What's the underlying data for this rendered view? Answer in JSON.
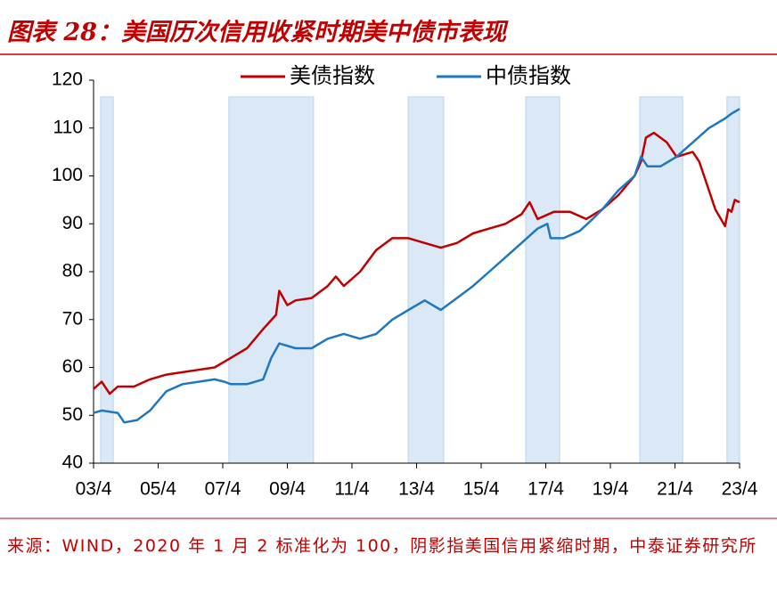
{
  "chart_data": {
    "type": "line",
    "title": "图表 28：美国历次信用收紧时期美中债市表现",
    "note": "来源：WIND，2020 年 1 月 2 标准化为 100，阴影指美国信用紧缩时期，中泰证券研究所",
    "xlim": [
      2003.25,
      2023.25
    ],
    "xticks": [
      {
        "value": 2003.25,
        "label": "03/4"
      },
      {
        "value": 2005.25,
        "label": "05/4"
      },
      {
        "value": 2007.25,
        "label": "07/4"
      },
      {
        "value": 2009.25,
        "label": "09/4"
      },
      {
        "value": 2011.25,
        "label": "11/4"
      },
      {
        "value": 2013.25,
        "label": "13/4"
      },
      {
        "value": 2015.25,
        "label": "15/4"
      },
      {
        "value": 2017.25,
        "label": "17/4"
      },
      {
        "value": 2019.25,
        "label": "19/4"
      },
      {
        "value": 2021.25,
        "label": "21/4"
      },
      {
        "value": 2023.25,
        "label": "23/4"
      }
    ],
    "ylim": [
      40,
      120
    ],
    "yticks": [
      40,
      50,
      60,
      70,
      80,
      90,
      100,
      110,
      120
    ],
    "shade_color": "#dbe9f6",
    "shade_top": 116.5,
    "shaded_periods": [
      [
        2003.47,
        2003.86
      ],
      [
        2007.44,
        2010.06
      ],
      [
        2012.99,
        2014.09
      ],
      [
        2016.63,
        2017.68
      ],
      [
        2020.16,
        2021.49
      ],
      [
        2022.86,
        2023.25
      ]
    ],
    "legend": "top",
    "series": [
      {
        "name": "美债指数",
        "color": "#c00000",
        "x": [
          2003.25,
          2003.5,
          2003.75,
          2004.0,
          2004.5,
          2005.0,
          2005.5,
          2006.0,
          2006.5,
          2007.0,
          2007.5,
          2008.0,
          2008.5,
          2008.9,
          2009.0,
          2009.25,
          2009.5,
          2010.0,
          2010.5,
          2010.75,
          2011.0,
          2011.5,
          2012.0,
          2012.5,
          2013.0,
          2013.5,
          2014.0,
          2014.5,
          2015.0,
          2015.5,
          2016.0,
          2016.5,
          2016.75,
          2017.0,
          2017.5,
          2018.0,
          2018.5,
          2019.0,
          2019.5,
          2020.0,
          2020.2,
          2020.35,
          2020.6,
          2021.0,
          2021.3,
          2021.8,
          2022.0,
          2022.3,
          2022.5,
          2022.8,
          2022.9,
          2023.0,
          2023.1,
          2023.25
        ],
        "values": [
          55.5,
          57,
          54.5,
          56,
          56,
          57.5,
          58.5,
          59,
          59.5,
          60,
          62,
          64,
          68,
          71,
          76,
          73,
          74,
          74.5,
          77,
          79,
          77,
          80,
          84.5,
          87,
          87,
          86,
          85,
          86,
          88,
          89,
          90,
          92,
          94.5,
          91,
          92.5,
          92.5,
          91,
          93,
          96,
          100,
          103,
          108,
          109,
          107,
          104,
          105,
          103,
          97,
          93,
          89.5,
          93,
          92.5,
          95,
          94.5
        ]
      },
      {
        "name": "中债指数",
        "color": "#1f77c0",
        "x": [
          2003.25,
          2003.5,
          2004.0,
          2004.2,
          2004.6,
          2005.0,
          2005.5,
          2006.0,
          2006.5,
          2007.0,
          2007.3,
          2007.5,
          2008.0,
          2008.5,
          2008.75,
          2009.0,
          2009.5,
          2010.0,
          2010.5,
          2011.0,
          2011.5,
          2012.0,
          2012.5,
          2013.0,
          2013.5,
          2014.0,
          2014.5,
          2015.0,
          2015.5,
          2016.0,
          2016.5,
          2017.0,
          2017.3,
          2017.4,
          2017.8,
          2018.3,
          2018.7,
          2019.0,
          2019.5,
          2020.0,
          2020.2,
          2020.4,
          2020.8,
          2021.3,
          2021.8,
          2022.3,
          2022.8,
          2023.0,
          2023.25
        ],
        "values": [
          50.5,
          51,
          50.5,
          48.5,
          49,
          51,
          55,
          56.5,
          57,
          57.5,
          57,
          56.5,
          56.5,
          57.5,
          62,
          65,
          64,
          64,
          66,
          67,
          66,
          67,
          70,
          72,
          74,
          72,
          74.5,
          77,
          80,
          83,
          86,
          89,
          90,
          87,
          87,
          88.5,
          91,
          93,
          97,
          100,
          104,
          102,
          102,
          104,
          107,
          110,
          112,
          113,
          114
        ]
      }
    ]
  }
}
